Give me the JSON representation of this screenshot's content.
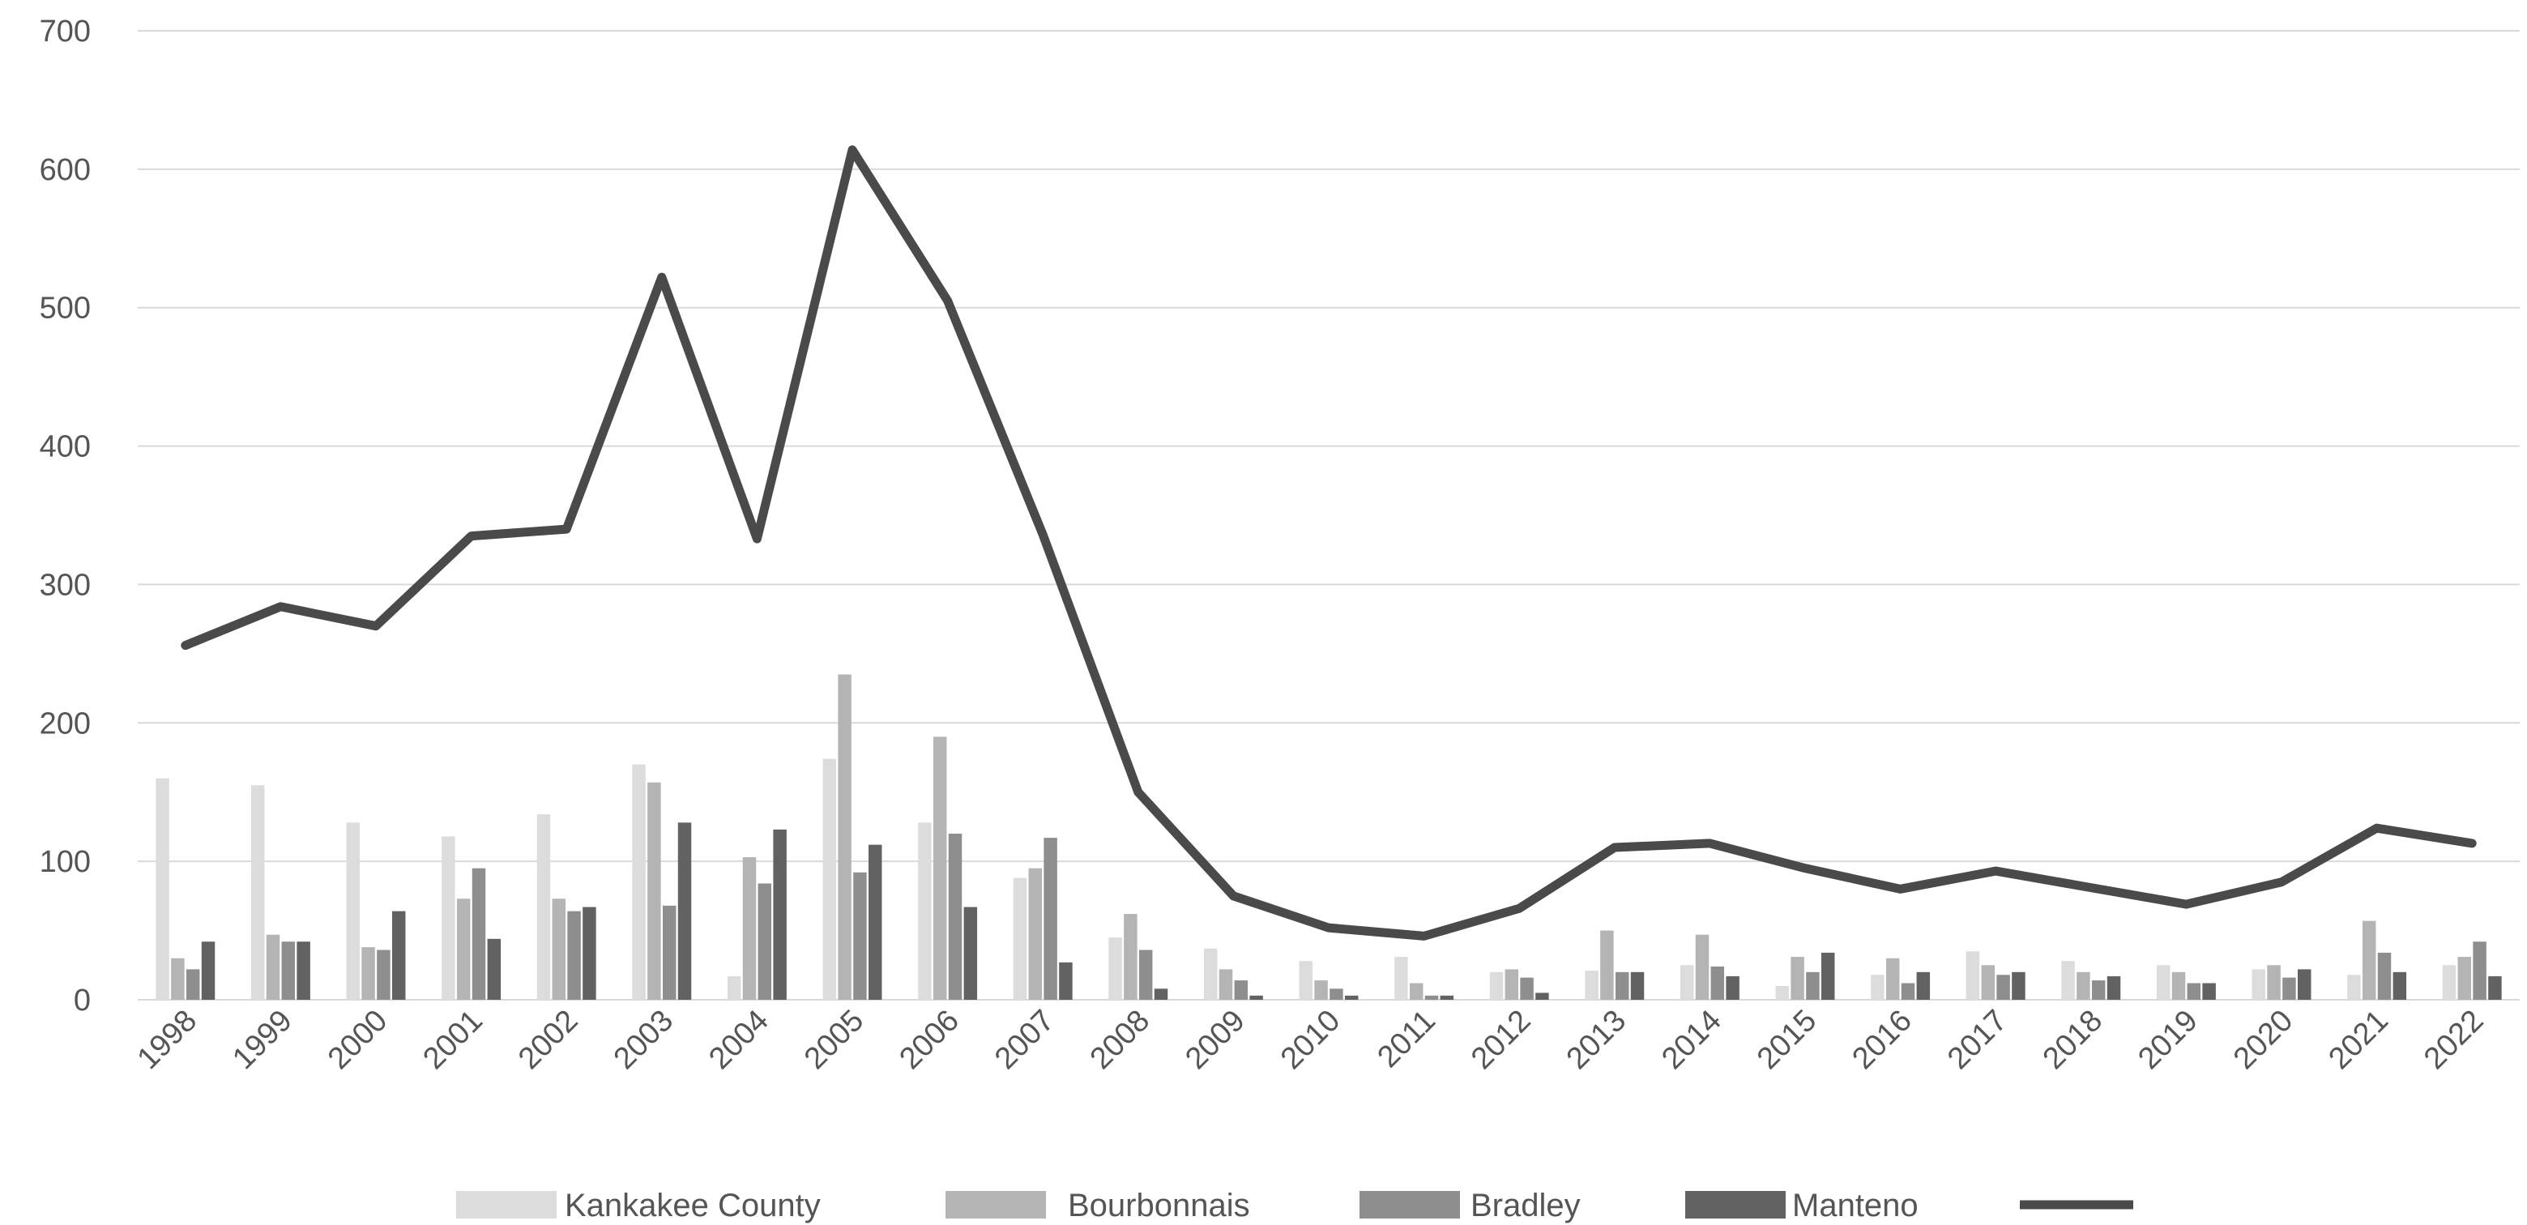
{
  "chart_data": {
    "type": "bar",
    "title": "",
    "xlabel": "",
    "ylabel": "",
    "ylim": [
      0,
      700
    ],
    "yticks": [
      0,
      100,
      200,
      300,
      400,
      500,
      600,
      700
    ],
    "grid": true,
    "legend_position": "bottom",
    "categories": [
      "1998",
      "1999",
      "2000",
      "2001",
      "2002",
      "2003",
      "2004",
      "2005",
      "2006",
      "2007",
      "2008",
      "2009",
      "2010",
      "2011",
      "2012",
      "2013",
      "2014",
      "2015",
      "2016",
      "2017",
      "2018",
      "2019",
      "2020",
      "2021",
      "2022"
    ],
    "series": [
      {
        "name": "Kankakee County",
        "kind": "bar",
        "color": "#dcdcdc",
        "values": [
          160,
          155,
          128,
          118,
          134,
          170,
          17,
          174,
          128,
          88,
          45,
          37,
          28,
          31,
          20,
          21,
          25,
          10,
          18,
          35,
          28,
          25,
          22,
          18,
          25
        ]
      },
      {
        "name": "Bourbonnais",
        "kind": "bar",
        "color": "#b4b4b4",
        "values": [
          30,
          47,
          38,
          73,
          73,
          157,
          103,
          235,
          190,
          95,
          62,
          22,
          14,
          12,
          22,
          50,
          47,
          31,
          30,
          25,
          20,
          20,
          25,
          57,
          31
        ]
      },
      {
        "name": "Bradley",
        "kind": "bar",
        "color": "#8e8e8e",
        "values": [
          22,
          42,
          36,
          95,
          64,
          68,
          84,
          92,
          120,
          117,
          36,
          14,
          8,
          3,
          16,
          20,
          24,
          20,
          12,
          18,
          14,
          12,
          16,
          34,
          42
        ]
      },
      {
        "name": "Manteno",
        "kind": "bar",
        "color": "#626262",
        "values": [
          42,
          42,
          64,
          44,
          67,
          128,
          123,
          112,
          67,
          27,
          8,
          3,
          3,
          3,
          5,
          20,
          17,
          34,
          20,
          20,
          17,
          12,
          22,
          20,
          17
        ]
      },
      {
        "name": "",
        "kind": "line",
        "color": "#4a4a4a",
        "values": [
          256,
          284,
          270,
          335,
          340,
          522,
          333,
          614,
          505,
          336,
          150,
          75,
          52,
          46,
          66,
          110,
          113,
          95,
          80,
          93,
          81,
          69,
          85,
          124,
          113
        ]
      }
    ]
  }
}
